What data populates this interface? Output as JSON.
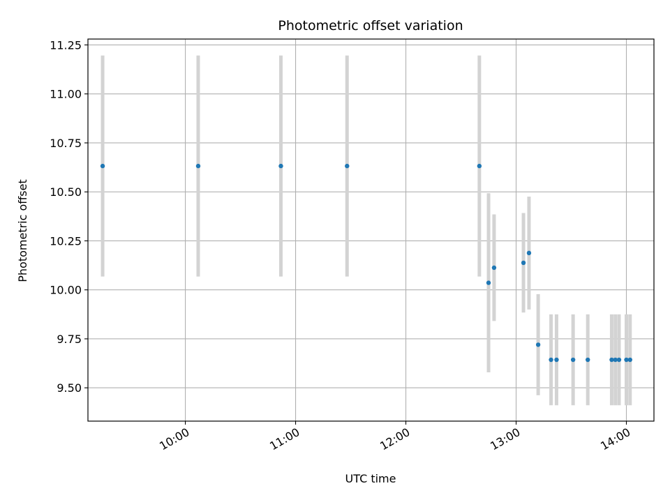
{
  "chart_data": {
    "type": "scatter",
    "title": "Photometric offset variation",
    "xlabel": "UTC time",
    "ylabel": "Photometric offset",
    "x_unit": "hours UTC",
    "xlim": [
      "09:07",
      "14:15"
    ],
    "ylim": [
      9.33,
      11.28
    ],
    "x_ticks": [
      {
        "value": "10:00",
        "label": "10:00"
      },
      {
        "value": "11:00",
        "label": "11:00"
      },
      {
        "value": "12:00",
        "label": "12:00"
      },
      {
        "value": "13:00",
        "label": "13:00"
      },
      {
        "value": "14:00",
        "label": "14:00"
      }
    ],
    "y_ticks": [
      {
        "value": 9.5,
        "label": "9.50"
      },
      {
        "value": 9.75,
        "label": "9.75"
      },
      {
        "value": 10.0,
        "label": "10.00"
      },
      {
        "value": 10.25,
        "label": "10.25"
      },
      {
        "value": 10.5,
        "label": "10.50"
      },
      {
        "value": 10.75,
        "label": "10.75"
      },
      {
        "value": 11.0,
        "label": "11.00"
      },
      {
        "value": 11.25,
        "label": "11.25"
      }
    ],
    "grid": true,
    "legend": false,
    "colors": {
      "marker": "#1f77b4",
      "errorbar": "#d3d3d3",
      "grid": "#b0b0b0"
    },
    "points": [
      {
        "x": "09:15",
        "y": 10.632,
        "err": 0.564
      },
      {
        "x": "10:07",
        "y": 10.632,
        "err": 0.564
      },
      {
        "x": "10:52",
        "y": 10.632,
        "err": 0.564
      },
      {
        "x": "11:28",
        "y": 10.632,
        "err": 0.564
      },
      {
        "x": "12:40",
        "y": 10.632,
        "err": 0.564
      },
      {
        "x": "12:45",
        "y": 10.036,
        "err": 0.457
      },
      {
        "x": "12:48",
        "y": 10.113,
        "err": 0.272
      },
      {
        "x": "13:04",
        "y": 10.138,
        "err": 0.254
      },
      {
        "x": "13:07",
        "y": 10.188,
        "err": 0.288
      },
      {
        "x": "13:12",
        "y": 9.72,
        "err": 0.258
      },
      {
        "x": "13:19",
        "y": 9.643,
        "err": 0.232
      },
      {
        "x": "13:22",
        "y": 9.643,
        "err": 0.232
      },
      {
        "x": "13:31",
        "y": 9.643,
        "err": 0.232
      },
      {
        "x": "13:39",
        "y": 9.643,
        "err": 0.232
      },
      {
        "x": "13:52",
        "y": 9.643,
        "err": 0.232
      },
      {
        "x": "13:54",
        "y": 9.643,
        "err": 0.232
      },
      {
        "x": "13:56",
        "y": 9.643,
        "err": 0.232
      },
      {
        "x": "14:00",
        "y": 9.643,
        "err": 0.232
      },
      {
        "x": "14:02",
        "y": 9.643,
        "err": 0.232
      }
    ]
  }
}
